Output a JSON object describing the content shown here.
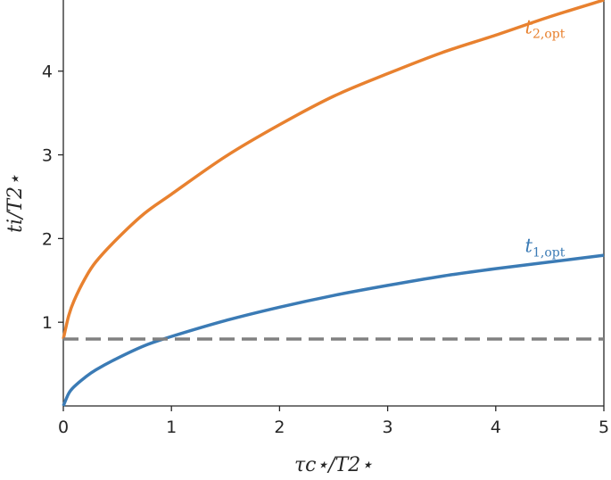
{
  "chart_data": {
    "type": "line",
    "xlabel": "τc⋆/T2⋆",
    "ylabel": "ti/T2⋆",
    "xlim": [
      0,
      5
    ],
    "ylim": [
      0,
      4.85
    ],
    "xticks": [
      0,
      1,
      2,
      3,
      4,
      5
    ],
    "yticks": [
      1,
      2,
      3,
      4
    ],
    "grid": false,
    "series": [
      {
        "name": "t2,opt",
        "label_main": "t",
        "label_sub": "2,opt",
        "color": "#e8812f",
        "style": "solid",
        "x": [
          0,
          0.05,
          0.1,
          0.2,
          0.3,
          0.5,
          0.75,
          1.0,
          1.5,
          2.0,
          2.5,
          3.0,
          3.5,
          4.0,
          4.5,
          5.0
        ],
        "y": [
          0.8,
          1.08,
          1.26,
          1.52,
          1.72,
          2.0,
          2.3,
          2.53,
          2.98,
          3.36,
          3.7,
          3.97,
          4.22,
          4.43,
          4.65,
          4.85
        ]
      },
      {
        "name": "t1,opt",
        "label_main": "t",
        "label_sub": "1,opt",
        "color": "#3b7bb5",
        "style": "solid",
        "x": [
          0,
          0.05,
          0.1,
          0.2,
          0.3,
          0.5,
          0.75,
          1.0,
          1.5,
          2.0,
          2.5,
          3.0,
          3.5,
          4.0,
          4.5,
          5.0
        ],
        "y": [
          0.0,
          0.15,
          0.23,
          0.34,
          0.43,
          0.57,
          0.72,
          0.83,
          1.02,
          1.18,
          1.32,
          1.44,
          1.55,
          1.64,
          1.72,
          1.8
        ]
      },
      {
        "name": "",
        "color": "#808080",
        "style": "dashed",
        "x": [
          0,
          5
        ],
        "y": [
          0.8,
          0.8
        ]
      }
    ]
  }
}
